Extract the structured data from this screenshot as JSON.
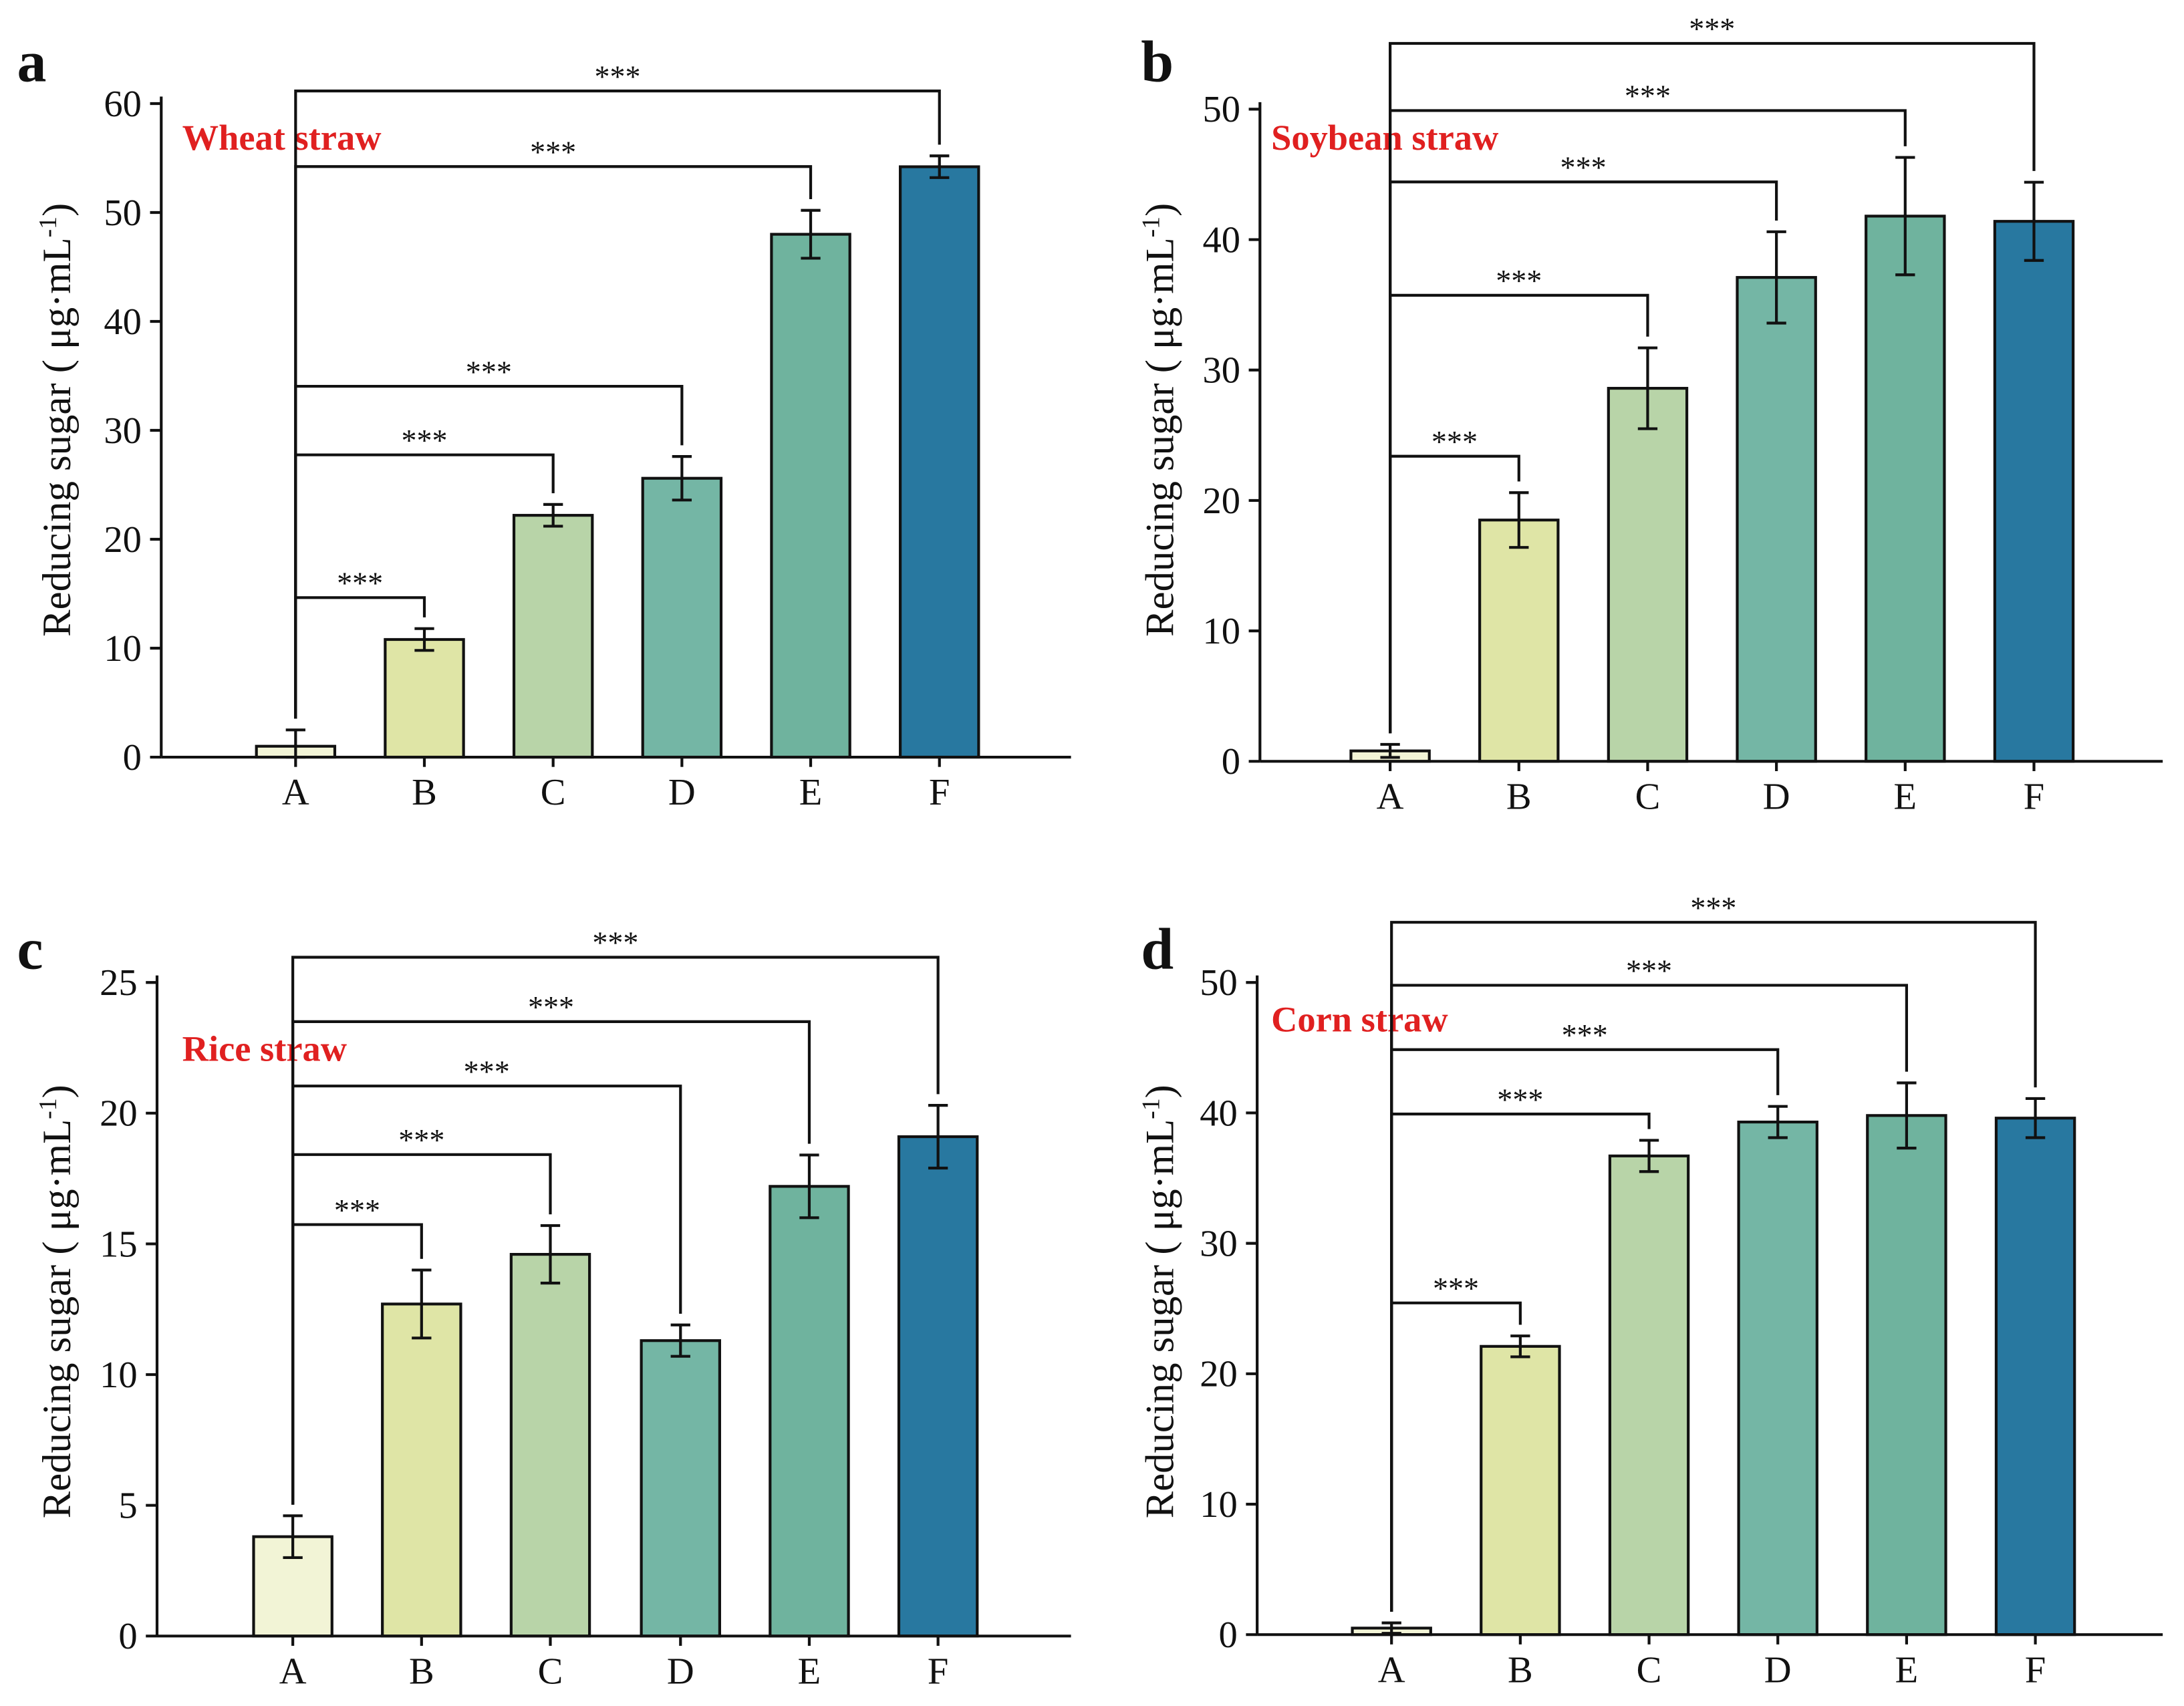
{
  "chart_data": [
    {
      "type": "bar",
      "panel": "a",
      "title": "Wheat straw",
      "categories": [
        "A",
        "B",
        "C",
        "D",
        "E",
        "F"
      ],
      "values": [
        1.0,
        10.8,
        22.2,
        25.6,
        48.0,
        54.2
      ],
      "errors": [
        1.5,
        1.0,
        1.0,
        2.0,
        2.2,
        1.0
      ],
      "ylabel": "Reducing sugar ( μg·mL",
      "ylabel_sup": "-1",
      "ylabel_end": ")",
      "ylim": [
        0,
        60
      ],
      "yticks": [
        0,
        10,
        20,
        30,
        40,
        50,
        60
      ],
      "significance": [
        {
          "pair": [
            "A",
            "B"
          ],
          "label": "***"
        },
        {
          "pair": [
            "A",
            "C"
          ],
          "label": "***"
        },
        {
          "pair": [
            "A",
            "D"
          ],
          "label": "***"
        },
        {
          "pair": [
            "A",
            "E"
          ],
          "label": "***"
        },
        {
          "pair": [
            "A",
            "F"
          ],
          "label": "***"
        }
      ]
    },
    {
      "type": "bar",
      "panel": "b",
      "title": "Soybean straw",
      "categories": [
        "A",
        "B",
        "C",
        "D",
        "E",
        "F"
      ],
      "values": [
        0.8,
        18.5,
        28.6,
        37.1,
        41.8,
        41.4
      ],
      "errors": [
        0.5,
        2.1,
        3.1,
        3.5,
        4.5,
        3.0
      ],
      "ylabel": "Reducing sugar ( μg·mL",
      "ylabel_sup": "-1",
      "ylabel_end": ")",
      "ylim": [
        0,
        50
      ],
      "yticks": [
        0,
        10,
        20,
        30,
        40,
        50
      ],
      "significance": [
        {
          "pair": [
            "A",
            "B"
          ],
          "label": "***"
        },
        {
          "pair": [
            "A",
            "C"
          ],
          "label": "***"
        },
        {
          "pair": [
            "A",
            "D"
          ],
          "label": "***"
        },
        {
          "pair": [
            "A",
            "E"
          ],
          "label": "***"
        },
        {
          "pair": [
            "A",
            "F"
          ],
          "label": "***"
        }
      ]
    },
    {
      "type": "bar",
      "panel": "c",
      "title": "Rice straw",
      "categories": [
        "A",
        "B",
        "C",
        "D",
        "E",
        "F"
      ],
      "values": [
        3.8,
        12.7,
        14.6,
        11.3,
        17.2,
        19.1
      ],
      "errors": [
        0.8,
        1.3,
        1.1,
        0.6,
        1.2,
        1.2
      ],
      "ylabel": "Reducing sugar ( μg·mL",
      "ylabel_sup": "-1",
      "ylabel_end": ")",
      "ylim": [
        0,
        25
      ],
      "yticks": [
        0,
        5,
        10,
        15,
        20,
        25
      ],
      "significance": [
        {
          "pair": [
            "A",
            "B"
          ],
          "label": "***"
        },
        {
          "pair": [
            "A",
            "C"
          ],
          "label": "***"
        },
        {
          "pair": [
            "A",
            "D"
          ],
          "label": "***"
        },
        {
          "pair": [
            "A",
            "E"
          ],
          "label": "***"
        },
        {
          "pair": [
            "A",
            "F"
          ],
          "label": "***"
        }
      ]
    },
    {
      "type": "bar",
      "panel": "d",
      "title": "Corn straw",
      "categories": [
        "A",
        "B",
        "C",
        "D",
        "E",
        "F"
      ],
      "values": [
        0.5,
        22.1,
        36.7,
        39.3,
        39.8,
        39.6
      ],
      "errors": [
        0.4,
        0.8,
        1.2,
        1.2,
        2.5,
        1.5
      ],
      "ylabel": "Reducing sugar ( μg·mL",
      "ylabel_sup": "-1",
      "ylabel_end": ")",
      "ylim": [
        0,
        50
      ],
      "yticks": [
        0,
        10,
        20,
        30,
        40,
        50
      ],
      "significance": [
        {
          "pair": [
            "A",
            "B"
          ],
          "label": "***"
        },
        {
          "pair": [
            "A",
            "C"
          ],
          "label": "***"
        },
        {
          "pair": [
            "A",
            "D"
          ],
          "label": "***"
        },
        {
          "pair": [
            "A",
            "E"
          ],
          "label": "***"
        },
        {
          "pair": [
            "A",
            "F"
          ],
          "label": "***"
        }
      ]
    }
  ],
  "colors": {
    "bars": [
      "#f2f4d6",
      "#dfe5a6",
      "#b8d4a8",
      "#74b6a5",
      "#6fb39e",
      "#2878a0"
    ],
    "title": "#e02020"
  }
}
